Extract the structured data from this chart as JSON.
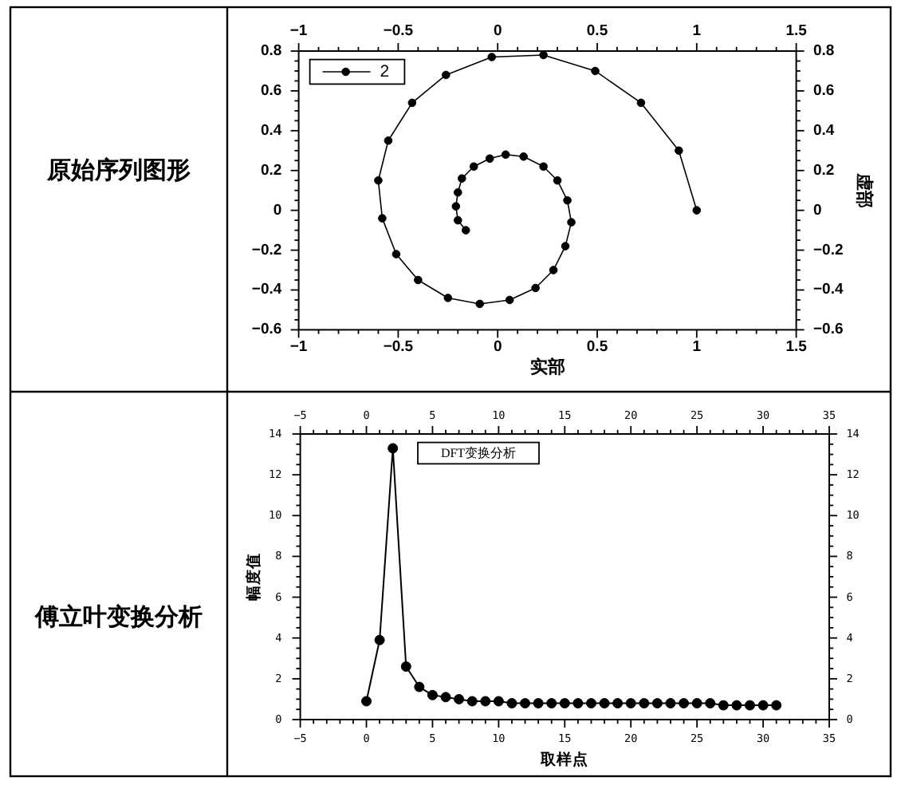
{
  "chart_data": [
    {
      "type": "line",
      "title": "原始序列图形",
      "xlabel": "实部",
      "y2label": "虚部",
      "legend": "top left",
      "marker": "circle",
      "xlim": [
        -1,
        1.5
      ],
      "xticks": [
        -1,
        -0.5,
        0,
        0.5,
        1,
        1.5
      ],
      "x2lim": [
        -1,
        1.5
      ],
      "x2ticks": [
        -1,
        -0.5,
        0,
        0.5,
        1,
        1.5
      ],
      "ylim": [
        -0.6,
        0.8
      ],
      "yticks": [
        -0.6,
        -0.4,
        -0.2,
        0,
        0.2,
        0.4,
        0.6,
        0.8
      ],
      "y2lim": [
        -0.6,
        0.8
      ],
      "y2ticks": [
        -0.6,
        -0.4,
        -0.2,
        0,
        0.2,
        0.4,
        0.6,
        0.8
      ],
      "x": [
        1.0,
        0.91,
        0.72,
        0.49,
        0.23,
        -0.03,
        -0.26,
        -0.43,
        -0.55,
        -0.6,
        -0.58,
        -0.51,
        -0.4,
        -0.25,
        -0.09,
        0.06,
        0.19,
        0.28,
        0.34,
        0.37,
        0.35,
        0.3,
        0.23,
        0.13,
        0.04,
        -0.04,
        -0.12,
        -0.18,
        -0.2,
        -0.21,
        -0.2,
        -0.16
      ],
      "series": [
        {
          "name": "2",
          "color": "#000000",
          "values": [
            0.0,
            0.3,
            0.54,
            0.7,
            0.78,
            0.77,
            0.68,
            0.54,
            0.35,
            0.15,
            -0.04,
            -0.22,
            -0.35,
            -0.44,
            -0.47,
            -0.45,
            -0.39,
            -0.3,
            -0.18,
            -0.06,
            0.05,
            0.15,
            0.22,
            0.27,
            0.28,
            0.26,
            0.22,
            0.16,
            0.09,
            0.02,
            -0.05,
            -0.1
          ]
        }
      ]
    },
    {
      "type": "line",
      "title": "傅立叶变换分析",
      "xlabel": "取样点",
      "ylabel": "幅度值",
      "annotations": [
        "DFT变换分析"
      ],
      "marker": "circle",
      "xlim": [
        -5,
        35
      ],
      "xticks": [
        -5,
        0,
        5,
        10,
        15,
        20,
        25,
        30,
        35
      ],
      "x2lim": [
        -5,
        35
      ],
      "x2ticks": [
        -5,
        0,
        5,
        10,
        15,
        20,
        25,
        30,
        35
      ],
      "ylim": [
        0,
        14
      ],
      "yticks": [
        0,
        2,
        4,
        6,
        8,
        10,
        12,
        14
      ],
      "y2lim": [
        0,
        14
      ],
      "y2ticks": [
        0,
        2,
        4,
        6,
        8,
        10,
        12,
        14
      ],
      "x": [
        0,
        1,
        2,
        3,
        4,
        5,
        6,
        7,
        8,
        9,
        10,
        11,
        12,
        13,
        14,
        15,
        16,
        17,
        18,
        19,
        20,
        21,
        22,
        23,
        24,
        25,
        26,
        27,
        28,
        29,
        30,
        31
      ],
      "series": [
        {
          "color": "#000000",
          "values": [
            0.9,
            3.9,
            13.3,
            2.6,
            1.6,
            1.2,
            1.1,
            1.0,
            0.9,
            0.9,
            0.9,
            0.8,
            0.8,
            0.8,
            0.8,
            0.8,
            0.8,
            0.8,
            0.8,
            0.8,
            0.8,
            0.8,
            0.8,
            0.8,
            0.8,
            0.8,
            0.8,
            0.7,
            0.7,
            0.7,
            0.7,
            0.7
          ]
        }
      ]
    }
  ]
}
